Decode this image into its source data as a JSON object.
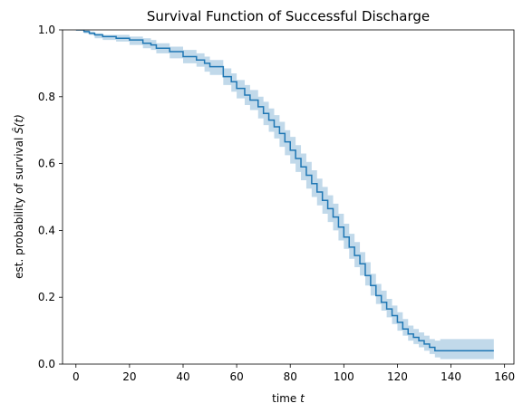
{
  "chart_data": {
    "type": "line",
    "step": true,
    "title": "Survival Function of Successful Discharge",
    "xlabel_prefix": "time ",
    "xlabel_var": "t",
    "ylabel_text": "est. probability of survival ",
    "ylabel_math": "Ŝ(t)",
    "xlim": [
      -5,
      163.5
    ],
    "ylim": [
      0.0,
      1.0
    ],
    "xticks": [
      0,
      20,
      40,
      60,
      80,
      100,
      120,
      140,
      160
    ],
    "yticks": [
      0.0,
      0.2,
      0.4,
      0.6,
      0.8,
      1.0
    ],
    "ytick_labels": [
      "0.0",
      "0.2",
      "0.4",
      "0.6",
      "0.8",
      "1.0"
    ],
    "grid": false,
    "colors": {
      "line": "#1f77b4",
      "band": "#1f77b4"
    },
    "series": [
      {
        "x": [
          0,
          3,
          5,
          7,
          10,
          15,
          20,
          25,
          28,
          30,
          35,
          40,
          45,
          48,
          50,
          55,
          58,
          60,
          63,
          65,
          68,
          70,
          72,
          74,
          76,
          78,
          80,
          82,
          84,
          86,
          88,
          90,
          92,
          94,
          96,
          98,
          100,
          102,
          104,
          106,
          108,
          110,
          112,
          114,
          116,
          118,
          120,
          122,
          124,
          126,
          128,
          130,
          132,
          134,
          136,
          156
        ],
        "y": [
          1.0,
          0.995,
          0.99,
          0.985,
          0.98,
          0.975,
          0.97,
          0.96,
          0.955,
          0.945,
          0.935,
          0.92,
          0.91,
          0.9,
          0.89,
          0.86,
          0.845,
          0.825,
          0.805,
          0.79,
          0.77,
          0.75,
          0.73,
          0.71,
          0.69,
          0.665,
          0.64,
          0.615,
          0.59,
          0.565,
          0.54,
          0.515,
          0.49,
          0.465,
          0.44,
          0.41,
          0.38,
          0.35,
          0.325,
          0.3,
          0.265,
          0.235,
          0.205,
          0.185,
          0.165,
          0.145,
          0.125,
          0.105,
          0.09,
          0.08,
          0.07,
          0.06,
          0.05,
          0.04,
          0.04,
          0.04
        ],
        "lower": [
          1.0,
          0.99,
          0.985,
          0.975,
          0.97,
          0.965,
          0.955,
          0.945,
          0.94,
          0.93,
          0.915,
          0.9,
          0.89,
          0.875,
          0.865,
          0.835,
          0.815,
          0.795,
          0.775,
          0.76,
          0.735,
          0.715,
          0.695,
          0.675,
          0.65,
          0.625,
          0.6,
          0.575,
          0.55,
          0.525,
          0.5,
          0.475,
          0.45,
          0.425,
          0.4,
          0.37,
          0.345,
          0.315,
          0.29,
          0.265,
          0.235,
          0.205,
          0.18,
          0.16,
          0.14,
          0.12,
          0.1,
          0.085,
          0.07,
          0.06,
          0.05,
          0.04,
          0.03,
          0.02,
          0.015,
          0.015
        ],
        "upper": [
          1.0,
          1.0,
          0.995,
          0.99,
          0.985,
          0.985,
          0.98,
          0.975,
          0.97,
          0.96,
          0.95,
          0.94,
          0.93,
          0.92,
          0.91,
          0.885,
          0.87,
          0.85,
          0.835,
          0.82,
          0.8,
          0.785,
          0.765,
          0.745,
          0.725,
          0.7,
          0.68,
          0.655,
          0.63,
          0.605,
          0.58,
          0.555,
          0.53,
          0.505,
          0.48,
          0.45,
          0.42,
          0.39,
          0.365,
          0.335,
          0.305,
          0.27,
          0.24,
          0.22,
          0.195,
          0.175,
          0.155,
          0.135,
          0.115,
          0.105,
          0.095,
          0.085,
          0.075,
          0.07,
          0.075,
          0.08
        ]
      }
    ]
  }
}
